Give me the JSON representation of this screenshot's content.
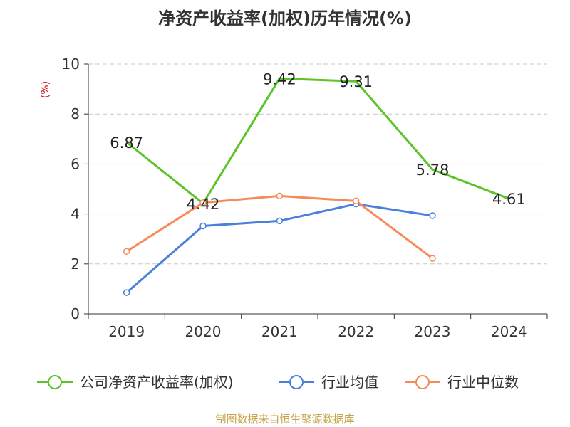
{
  "chart_data": {
    "type": "line",
    "title": "净资产收益率(加权)历年情况(%)",
    "ylabel": "(%)",
    "xlabel": "",
    "ylim": [
      0,
      10
    ],
    "yticks": [
      0,
      2,
      4,
      6,
      8,
      10
    ],
    "categories": [
      "2019",
      "2020",
      "2021",
      "2022",
      "2023",
      "2024"
    ],
    "grid": true,
    "legend_position": "bottom",
    "series": [
      {
        "name": "公司净资产收益率(加权)",
        "color": "#5cc427",
        "values": [
          6.87,
          4.42,
          9.42,
          9.31,
          5.78,
          4.61
        ],
        "labels": [
          "6.87",
          "4.42",
          "9.42",
          "9.31",
          "5.78",
          "4.61"
        ],
        "show_labels": true
      },
      {
        "name": "行业均值",
        "color": "#4a7fdc",
        "values": [
          0.85,
          3.52,
          3.72,
          4.4,
          3.93,
          null
        ],
        "show_labels": false
      },
      {
        "name": "行业中位数",
        "color": "#f58b5a",
        "values": [
          2.5,
          4.45,
          4.72,
          4.52,
          2.22,
          null
        ],
        "show_labels": false
      }
    ]
  },
  "footer": "制图数据来自恒生聚源数据库"
}
